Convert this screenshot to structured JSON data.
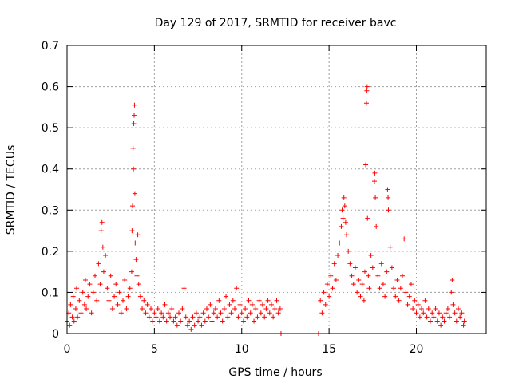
{
  "chart_data": {
    "type": "scatter",
    "title": "Day 129 of 2017, SRMTID for receiver bavc",
    "xlabel": "GPS time / hours",
    "ylabel": "SRMTID / TECUs",
    "xlim": [
      0,
      24
    ],
    "ylim": [
      0,
      0.7
    ],
    "xticks": [
      0,
      5,
      10,
      15,
      20
    ],
    "yticks": [
      0,
      0.1,
      0.2,
      0.3,
      0.4,
      0.5,
      0.6,
      0.7
    ],
    "x_tick_labels": [
      "0",
      "5",
      "10",
      "15",
      "20"
    ],
    "y_tick_labels": [
      "0",
      "0.1",
      "0.2",
      "0.3",
      "0.4",
      "0.5",
      "0.6",
      "0.7"
    ],
    "grid": true,
    "marker": "+",
    "color": "#ff0000",
    "data_gap_hours": [
      12.3,
      14.5
    ],
    "series": [
      {
        "name": "SRMTID",
        "points": [
          [
            0.0,
            0.03
          ],
          [
            0.1,
            0.05
          ],
          [
            0.15,
            0.02
          ],
          [
            0.2,
            0.07
          ],
          [
            0.3,
            0.04
          ],
          [
            0.35,
            0.09
          ],
          [
            0.4,
            0.03
          ],
          [
            0.5,
            0.06
          ],
          [
            0.55,
            0.11
          ],
          [
            0.6,
            0.04
          ],
          [
            0.7,
            0.08
          ],
          [
            0.8,
            0.05
          ],
          [
            0.9,
            0.1
          ],
          [
            1.0,
            0.07
          ],
          [
            1.05,
            0.13
          ],
          [
            1.1,
            0.06
          ],
          [
            1.2,
            0.09
          ],
          [
            1.3,
            0.12
          ],
          [
            1.4,
            0.05
          ],
          [
            1.5,
            0.1
          ],
          [
            1.6,
            0.14
          ],
          [
            1.7,
            0.08
          ],
          [
            1.8,
            0.17
          ],
          [
            1.9,
            0.12
          ],
          [
            1.95,
            0.25
          ],
          [
            2.0,
            0.27
          ],
          [
            2.05,
            0.21
          ],
          [
            2.1,
            0.15
          ],
          [
            2.2,
            0.19
          ],
          [
            2.3,
            0.11
          ],
          [
            2.4,
            0.08
          ],
          [
            2.5,
            0.14
          ],
          [
            2.6,
            0.06
          ],
          [
            2.7,
            0.09
          ],
          [
            2.8,
            0.12
          ],
          [
            2.9,
            0.07
          ],
          [
            3.0,
            0.1
          ],
          [
            3.1,
            0.05
          ],
          [
            3.2,
            0.08
          ],
          [
            3.3,
            0.13
          ],
          [
            3.4,
            0.06
          ],
          [
            3.5,
            0.09
          ],
          [
            3.6,
            0.11
          ],
          [
            3.7,
            0.15
          ],
          [
            3.72,
            0.25
          ],
          [
            3.75,
            0.31
          ],
          [
            3.78,
            0.45
          ],
          [
            3.8,
            0.4
          ],
          [
            3.82,
            0.51
          ],
          [
            3.84,
            0.53
          ],
          [
            3.86,
            0.555
          ],
          [
            3.88,
            0.34
          ],
          [
            3.9,
            0.22
          ],
          [
            3.95,
            0.18
          ],
          [
            4.0,
            0.14
          ],
          [
            4.05,
            0.24
          ],
          [
            4.1,
            0.12
          ],
          [
            4.2,
            0.09
          ],
          [
            4.3,
            0.06
          ],
          [
            4.4,
            0.08
          ],
          [
            4.5,
            0.05
          ],
          [
            4.6,
            0.07
          ],
          [
            4.7,
            0.04
          ],
          [
            4.8,
            0.06
          ],
          [
            4.9,
            0.03
          ],
          [
            5.0,
            0.05
          ],
          [
            5.1,
            0.04
          ],
          [
            5.2,
            0.06
          ],
          [
            5.3,
            0.03
          ],
          [
            5.4,
            0.05
          ],
          [
            5.5,
            0.04
          ],
          [
            5.6,
            0.07
          ],
          [
            5.7,
            0.03
          ],
          [
            5.8,
            0.05
          ],
          [
            5.9,
            0.04
          ],
          [
            6.0,
            0.06
          ],
          [
            6.1,
            0.03
          ],
          [
            6.2,
            0.04
          ],
          [
            6.3,
            0.02
          ],
          [
            6.4,
            0.05
          ],
          [
            6.5,
            0.03
          ],
          [
            6.6,
            0.06
          ],
          [
            6.7,
            0.11
          ],
          [
            6.8,
            0.04
          ],
          [
            6.9,
            0.02
          ],
          [
            7.0,
            0.03
          ],
          [
            7.1,
            0.01
          ],
          [
            7.2,
            0.04
          ],
          [
            7.3,
            0.02
          ],
          [
            7.4,
            0.05
          ],
          [
            7.5,
            0.03
          ],
          [
            7.6,
            0.04
          ],
          [
            7.7,
            0.02
          ],
          [
            7.8,
            0.05
          ],
          [
            7.9,
            0.03
          ],
          [
            8.0,
            0.06
          ],
          [
            8.1,
            0.04
          ],
          [
            8.2,
            0.07
          ],
          [
            8.3,
            0.03
          ],
          [
            8.4,
            0.05
          ],
          [
            8.5,
            0.06
          ],
          [
            8.6,
            0.04
          ],
          [
            8.7,
            0.08
          ],
          [
            8.8,
            0.05
          ],
          [
            8.9,
            0.03
          ],
          [
            9.0,
            0.06
          ],
          [
            9.1,
            0.09
          ],
          [
            9.2,
            0.04
          ],
          [
            9.3,
            0.07
          ],
          [
            9.4,
            0.05
          ],
          [
            9.5,
            0.08
          ],
          [
            9.6,
            0.06
          ],
          [
            9.7,
            0.11
          ],
          [
            9.8,
            0.04
          ],
          [
            9.9,
            0.07
          ],
          [
            10.0,
            0.05
          ],
          [
            10.1,
            0.03
          ],
          [
            10.2,
            0.06
          ],
          [
            10.3,
            0.04
          ],
          [
            10.4,
            0.08
          ],
          [
            10.5,
            0.05
          ],
          [
            10.6,
            0.07
          ],
          [
            10.7,
            0.03
          ],
          [
            10.8,
            0.06
          ],
          [
            10.9,
            0.04
          ],
          [
            11.0,
            0.08
          ],
          [
            11.1,
            0.05
          ],
          [
            11.2,
            0.07
          ],
          [
            11.3,
            0.04
          ],
          [
            11.4,
            0.06
          ],
          [
            11.5,
            0.08
          ],
          [
            11.6,
            0.05
          ],
          [
            11.7,
            0.07
          ],
          [
            11.8,
            0.04
          ],
          [
            11.9,
            0.06
          ],
          [
            12.0,
            0.08
          ],
          [
            12.1,
            0.05
          ],
          [
            12.2,
            0.06
          ],
          [
            12.25,
            0.0
          ],
          [
            14.4,
            0.0
          ],
          [
            14.5,
            0.08
          ],
          [
            14.6,
            0.05
          ],
          [
            14.7,
            0.1
          ],
          [
            14.8,
            0.07
          ],
          [
            14.9,
            0.12
          ],
          [
            15.0,
            0.09
          ],
          [
            15.1,
            0.14
          ],
          [
            15.2,
            0.11
          ],
          [
            15.3,
            0.17
          ],
          [
            15.4,
            0.13
          ],
          [
            15.5,
            0.19
          ],
          [
            15.6,
            0.22
          ],
          [
            15.7,
            0.26
          ],
          [
            15.75,
            0.3
          ],
          [
            15.8,
            0.28
          ],
          [
            15.85,
            0.33
          ],
          [
            15.9,
            0.31
          ],
          [
            15.95,
            0.27
          ],
          [
            16.0,
            0.24
          ],
          [
            16.1,
            0.2
          ],
          [
            16.2,
            0.17
          ],
          [
            16.3,
            0.14
          ],
          [
            16.4,
            0.12
          ],
          [
            16.5,
            0.16
          ],
          [
            16.6,
            0.1
          ],
          [
            16.7,
            0.13
          ],
          [
            16.8,
            0.09
          ],
          [
            16.9,
            0.12
          ],
          [
            17.0,
            0.08
          ],
          [
            17.05,
            0.15
          ],
          [
            17.1,
            0.41
          ],
          [
            17.12,
            0.48
          ],
          [
            17.14,
            0.56
          ],
          [
            17.16,
            0.59
          ],
          [
            17.18,
            0.6
          ],
          [
            17.2,
            0.28
          ],
          [
            17.25,
            0.14
          ],
          [
            17.3,
            0.11
          ],
          [
            17.4,
            0.19
          ],
          [
            17.5,
            0.16
          ],
          [
            17.6,
            0.37
          ],
          [
            17.62,
            0.39
          ],
          [
            17.65,
            0.33
          ],
          [
            17.7,
            0.26
          ],
          [
            17.8,
            0.14
          ],
          [
            17.9,
            0.11
          ],
          [
            18.0,
            0.17
          ],
          [
            18.1,
            0.12
          ],
          [
            18.2,
            0.09
          ],
          [
            18.3,
            0.15
          ],
          [
            18.35,
            0.35
          ],
          [
            18.38,
            0.33
          ],
          [
            18.4,
            0.3
          ],
          [
            18.5,
            0.21
          ],
          [
            18.6,
            0.16
          ],
          [
            18.7,
            0.11
          ],
          [
            18.8,
            0.09
          ],
          [
            18.9,
            0.13
          ],
          [
            19.0,
            0.08
          ],
          [
            19.1,
            0.11
          ],
          [
            19.2,
            0.14
          ],
          [
            19.3,
            0.23
          ],
          [
            19.4,
            0.1
          ],
          [
            19.5,
            0.07
          ],
          [
            19.6,
            0.09
          ],
          [
            19.7,
            0.12
          ],
          [
            19.8,
            0.06
          ],
          [
            19.9,
            0.08
          ],
          [
            20.0,
            0.05
          ],
          [
            20.1,
            0.07
          ],
          [
            20.2,
            0.04
          ],
          [
            20.3,
            0.06
          ],
          [
            20.4,
            0.05
          ],
          [
            20.5,
            0.08
          ],
          [
            20.6,
            0.04
          ],
          [
            20.7,
            0.06
          ],
          [
            20.8,
            0.03
          ],
          [
            20.9,
            0.05
          ],
          [
            21.0,
            0.04
          ],
          [
            21.1,
            0.06
          ],
          [
            21.2,
            0.03
          ],
          [
            21.3,
            0.05
          ],
          [
            21.4,
            0.02
          ],
          [
            21.5,
            0.04
          ],
          [
            21.6,
            0.03
          ],
          [
            21.7,
            0.05
          ],
          [
            21.8,
            0.06
          ],
          [
            21.9,
            0.04
          ],
          [
            22.0,
            0.1
          ],
          [
            22.05,
            0.13
          ],
          [
            22.1,
            0.07
          ],
          [
            22.2,
            0.05
          ],
          [
            22.3,
            0.03
          ],
          [
            22.4,
            0.06
          ],
          [
            22.5,
            0.04
          ],
          [
            22.6,
            0.05
          ],
          [
            22.7,
            0.02
          ],
          [
            22.75,
            0.03
          ]
        ]
      }
    ]
  }
}
